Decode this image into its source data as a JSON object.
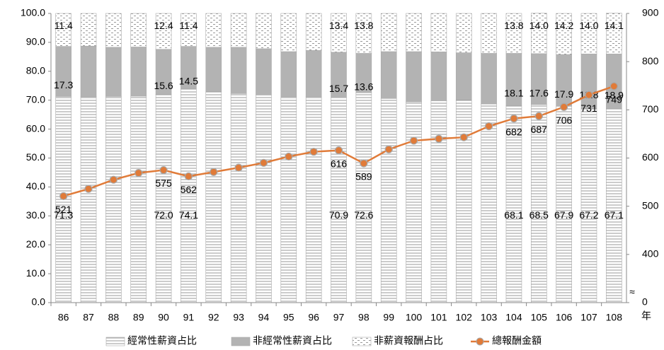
{
  "chart_data": {
    "type": "bar",
    "stacked": true,
    "x_label": "年",
    "y2_break_label": "≈",
    "categories": [
      "86",
      "87",
      "88",
      "89",
      "90",
      "91",
      "92",
      "93",
      "94",
      "95",
      "96",
      "97",
      "98",
      "99",
      "100",
      "101",
      "102",
      "103",
      "104",
      "105",
      "106",
      "107",
      "108"
    ],
    "series": [
      {
        "name": "經常性薪資占比",
        "color": "#ffffff",
        "pattern": "hlines",
        "values": [
          71.3,
          71.2,
          71.3,
          71.4,
          72.0,
          74.1,
          73.0,
          72.3,
          71.8,
          71.2,
          71.2,
          70.9,
          72.6,
          70.6,
          69.4,
          69.8,
          70.1,
          68.7,
          68.1,
          68.5,
          67.9,
          67.2,
          67.1
        ],
        "value_labels": [
          "71.3",
          null,
          null,
          null,
          "72.0",
          "74.1",
          null,
          null,
          null,
          null,
          null,
          "70.9",
          "72.6",
          null,
          null,
          null,
          null,
          null,
          "68.1",
          "68.5",
          "67.9",
          "67.2",
          "67.1"
        ]
      },
      {
        "name": "非經常性薪資占比",
        "color": "#b3b3b3",
        "values": [
          17.3,
          17.5,
          17.0,
          17.0,
          15.6,
          14.5,
          15.3,
          16.0,
          16.0,
          15.6,
          16.0,
          15.7,
          13.6,
          16.2,
          17.4,
          16.9,
          16.3,
          17.5,
          18.1,
          17.6,
          17.9,
          18.8,
          18.9
        ],
        "value_labels": [
          "17.3",
          null,
          null,
          null,
          "15.6",
          "14.5",
          null,
          null,
          null,
          null,
          null,
          "15.7",
          "13.6",
          null,
          null,
          null,
          null,
          null,
          "18.1",
          "17.6",
          "17.9",
          "18.8",
          "18.9"
        ]
      },
      {
        "name": "非薪資報酬占比",
        "color": "#ffffff",
        "pattern": "dashes",
        "values": [
          11.4,
          11.3,
          11.7,
          11.6,
          12.4,
          11.4,
          11.7,
          11.7,
          12.2,
          13.2,
          12.8,
          13.4,
          13.8,
          13.2,
          13.2,
          13.3,
          13.6,
          13.8,
          13.8,
          14.0,
          14.2,
          14.0,
          14.1
        ],
        "value_labels": [
          "11.4",
          null,
          null,
          null,
          "12.4",
          "11.4",
          null,
          null,
          null,
          null,
          null,
          "13.4",
          "13.8",
          null,
          null,
          null,
          null,
          null,
          "13.8",
          "14.0",
          "14.2",
          "14.0",
          "14.1"
        ]
      },
      {
        "name": "總報酬金額",
        "color": "#e07b39",
        "type": "line",
        "axis": "y2",
        "values": [
          521,
          536,
          555,
          569,
          575,
          562,
          571,
          580,
          590,
          603,
          613,
          616,
          589,
          618,
          636,
          640,
          643,
          666,
          682,
          687,
          706,
          731,
          749
        ],
        "value_labels": [
          "521",
          null,
          null,
          null,
          "575",
          "562",
          null,
          null,
          null,
          null,
          null,
          "616",
          "589",
          null,
          null,
          null,
          null,
          null,
          "682",
          "687",
          "706",
          "731",
          "749"
        ]
      }
    ],
    "ylim": [
      0,
      100
    ],
    "yticks": [
      {
        "value": 0,
        "label": "0.0"
      },
      {
        "value": 10,
        "label": "10.0"
      },
      {
        "value": 20,
        "label": "20.0"
      },
      {
        "value": 30,
        "label": "30.0"
      },
      {
        "value": 40,
        "label": "40.0"
      },
      {
        "value": 50,
        "label": "50.0"
      },
      {
        "value": 60,
        "label": "60.0"
      },
      {
        "value": 70,
        "label": "70.0"
      },
      {
        "value": 80,
        "label": "80.0"
      },
      {
        "value": 90,
        "label": "90.0"
      },
      {
        "value": 100,
        "label": "100.0"
      }
    ],
    "y2lim": [
      0,
      900
    ],
    "y2ticks": [
      0,
      400,
      500,
      600,
      700,
      800,
      900
    ],
    "y2_broken": true,
    "legend": "bottom"
  }
}
